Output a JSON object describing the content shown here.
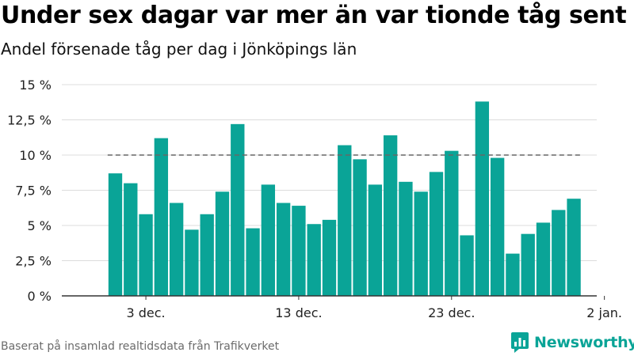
{
  "title": "Under sex dagar var mer än var tionde tåg sent",
  "subtitle": "Andel försenade tåg per dag i Jönköpings län",
  "source": "Baserat på insamlad realtidsdata från Trafikverket",
  "brand": {
    "name": "Newsworthy",
    "logo_icon": "newsworthy-logo-icon"
  },
  "colors": {
    "bar": "#0aa497",
    "reference_line": "#666666",
    "grid": "#dcdcdc",
    "axis": "#333333"
  },
  "chart_data": {
    "type": "bar",
    "x": [
      "2022-12-01",
      "2022-12-02",
      "2022-12-03",
      "2022-12-04",
      "2022-12-05",
      "2022-12-06",
      "2022-12-07",
      "2022-12-08",
      "2022-12-09",
      "2022-12-10",
      "2022-12-11",
      "2022-12-12",
      "2022-12-13",
      "2022-12-14",
      "2022-12-15",
      "2022-12-16",
      "2022-12-17",
      "2022-12-18",
      "2022-12-19",
      "2022-12-20",
      "2022-12-21",
      "2022-12-22",
      "2022-12-23",
      "2022-12-24",
      "2022-12-25",
      "2022-12-26",
      "2022-12-27",
      "2022-12-28",
      "2022-12-29",
      "2022-12-30",
      "2022-12-31"
    ],
    "values": [
      8.7,
      8.0,
      5.8,
      11.2,
      6.6,
      4.7,
      5.8,
      7.4,
      12.2,
      4.8,
      7.9,
      6.6,
      6.4,
      5.1,
      5.4,
      10.7,
      9.7,
      7.9,
      11.4,
      8.1,
      7.4,
      8.8,
      10.3,
      4.3,
      13.8,
      9.8,
      3.0,
      4.4,
      5.2,
      6.1,
      6.9
    ],
    "reference_line": 10,
    "ylim": [
      0,
      15
    ],
    "yticks": [
      0,
      2.5,
      5,
      7.5,
      10,
      12.5,
      15
    ],
    "ytick_labels": [
      "0 %",
      "2,5 %",
      "5 %",
      "7,5 %",
      "10 %",
      "12,5 %",
      "15 %"
    ],
    "xticks": [
      {
        "date": "2022-12-03",
        "label": "3 dec."
      },
      {
        "date": "2022-12-13",
        "label": "13 dec."
      },
      {
        "date": "2022-12-23",
        "label": "23 dec."
      },
      {
        "date": "2023-01-02",
        "label": "2 jan."
      }
    ],
    "xlim": [
      "2022-11-28",
      "2023-01-02"
    ],
    "grid": true,
    "legend": "none"
  }
}
